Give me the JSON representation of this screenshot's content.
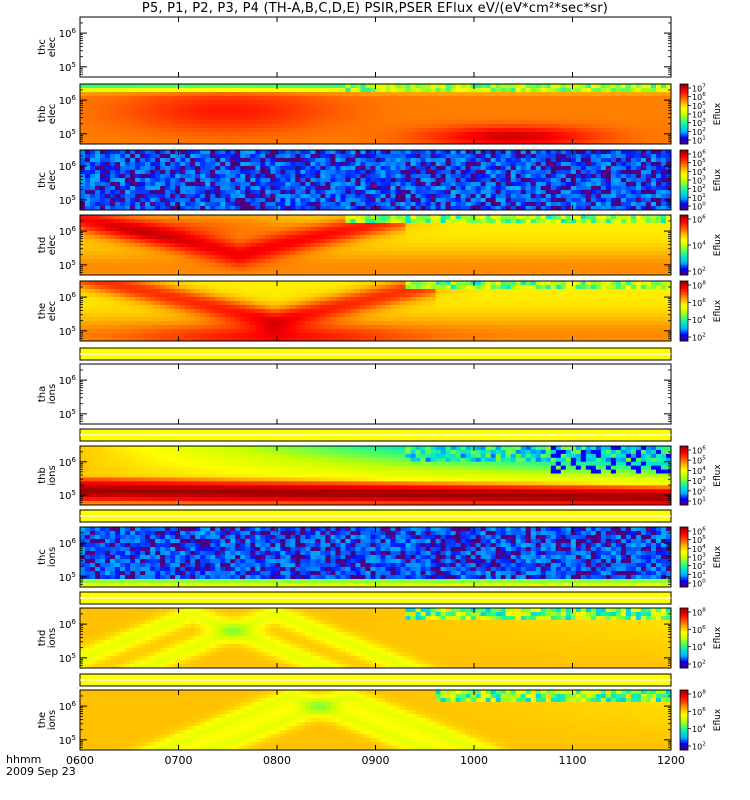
{
  "title": "P5, P1, P2, P3, P4 (TH-A,B,C,D,E) PSIR,PSER EFlux eV/(eV*cm²*sec*sr)",
  "time_label": "hhmm",
  "date_label": "2009 Sep 23",
  "colors": {
    "colormap": [
      "#4b0082",
      "#0000ff",
      "#00b0ff",
      "#00e8c8",
      "#50ff60",
      "#c8ff00",
      "#ffff00",
      "#ffb000",
      "#ff5000",
      "#ff0000",
      "#a00000"
    ]
  },
  "chart_data": {
    "type": "heatmap",
    "x_axis": {
      "label": "hhmm",
      "range": [
        "0600",
        "1200"
      ],
      "ticks": [
        "0600",
        "0700",
        "0800",
        "0900",
        "1000",
        "1100",
        "1200"
      ]
    },
    "y_axis_scale": "log",
    "panels": [
      {
        "probe": "thc",
        "species": "elec",
        "label": "thc elec",
        "has_data": false,
        "ylim": [
          50000.0,
          3000000.0
        ],
        "y_ticks": [
          {
            "value": 100000.0,
            "label": "10^5"
          },
          {
            "value": 1000000.0,
            "label": "10^6"
          }
        ],
        "colorbar": null
      },
      {
        "probe": "thb",
        "species": "elec",
        "label": "thb elec",
        "has_data": true,
        "ylim": [
          50000.0,
          3000000.0
        ],
        "y_ticks": [
          {
            "value": 100000.0,
            "label": "10^5"
          },
          {
            "value": 1000000.0,
            "label": "10^6"
          }
        ],
        "colorbar": {
          "label": "Eflux",
          "ticks": [
            "10^1",
            "10^2",
            "10^3",
            "10^4",
            "10^5",
            "10^6",
            "10^7"
          ]
        }
      },
      {
        "probe": "thc",
        "species": "elec",
        "label": "thc elec",
        "has_data": true,
        "ylim": [
          50000.0,
          3000000.0
        ],
        "y_ticks": [
          {
            "value": 100000.0,
            "label": "10^5"
          },
          {
            "value": 1000000.0,
            "label": "10^6"
          }
        ],
        "colorbar": {
          "label": "Eflux",
          "ticks": [
            "10^0",
            "10^1",
            "10^2",
            "10^3",
            "10^4",
            "10^5",
            "10^6"
          ]
        }
      },
      {
        "probe": "thd",
        "species": "elec",
        "label": "thd elec",
        "has_data": true,
        "ylim": [
          50000.0,
          3000000.0
        ],
        "y_ticks": [
          {
            "value": 100000.0,
            "label": "10^5"
          },
          {
            "value": 1000000.0,
            "label": "10^6"
          }
        ],
        "colorbar": {
          "label": "Eflux",
          "ticks": [
            "10^2",
            "10^4",
            "10^6"
          ]
        }
      },
      {
        "probe": "the",
        "species": "elec",
        "label": "the elec",
        "has_data": true,
        "ylim": [
          50000.0,
          3000000.0
        ],
        "y_ticks": [
          {
            "value": 100000.0,
            "label": "10^5"
          },
          {
            "value": 1000000.0,
            "label": "10^6"
          }
        ],
        "colorbar": {
          "label": "Eflux",
          "ticks": [
            "10^2",
            "10^4",
            "10^6",
            "10^8"
          ]
        }
      },
      {
        "probe": "tha",
        "species": "ions",
        "label": "tha ions",
        "has_data": false,
        "ylim": [
          50000.0,
          3000000.0
        ],
        "y_ticks": [
          {
            "value": 100000.0,
            "label": "10^5"
          },
          {
            "value": 1000000.0,
            "label": "10^6"
          }
        ],
        "colorbar": null
      },
      {
        "probe": "thb",
        "species": "ions",
        "label": "thb ions",
        "has_data": true,
        "ylim": [
          50000.0,
          3000000.0
        ],
        "y_ticks": [
          {
            "value": 100000.0,
            "label": "10^5"
          },
          {
            "value": 1000000.0,
            "label": "10^6"
          }
        ],
        "colorbar": {
          "label": "Eflux",
          "ticks": [
            "10^1",
            "10^2",
            "10^3",
            "10^4",
            "10^5",
            "10^6"
          ]
        }
      },
      {
        "probe": "thc",
        "species": "ions",
        "label": "thc ions",
        "has_data": true,
        "ylim": [
          50000.0,
          3000000.0
        ],
        "y_ticks": [
          {
            "value": 100000.0,
            "label": "10^5"
          },
          {
            "value": 1000000.0,
            "label": "10^6"
          }
        ],
        "colorbar": {
          "label": "Eflux",
          "ticks": [
            "10^0",
            "10^1",
            "10^2",
            "10^3",
            "10^4",
            "10^5",
            "10^6"
          ]
        }
      },
      {
        "probe": "thd",
        "species": "ions",
        "label": "thd ions",
        "has_data": true,
        "ylim": [
          50000.0,
          3000000.0
        ],
        "y_ticks": [
          {
            "value": 100000.0,
            "label": "10^5"
          },
          {
            "value": 1000000.0,
            "label": "10^6"
          }
        ],
        "colorbar": {
          "label": "Eflux",
          "ticks": [
            "10^2",
            "10^4",
            "10^6",
            "10^8"
          ]
        }
      },
      {
        "probe": "the",
        "species": "ions",
        "label": "the ions",
        "has_data": true,
        "ylim": [
          50000.0,
          3000000.0
        ],
        "y_ticks": [
          {
            "value": 100000.0,
            "label": "10^5"
          },
          {
            "value": 1000000.0,
            "label": "10^6"
          }
        ],
        "colorbar": {
          "label": "Eflux",
          "ticks": [
            "10^2",
            "10^4",
            "10^6",
            "10^8"
          ]
        }
      }
    ]
  }
}
